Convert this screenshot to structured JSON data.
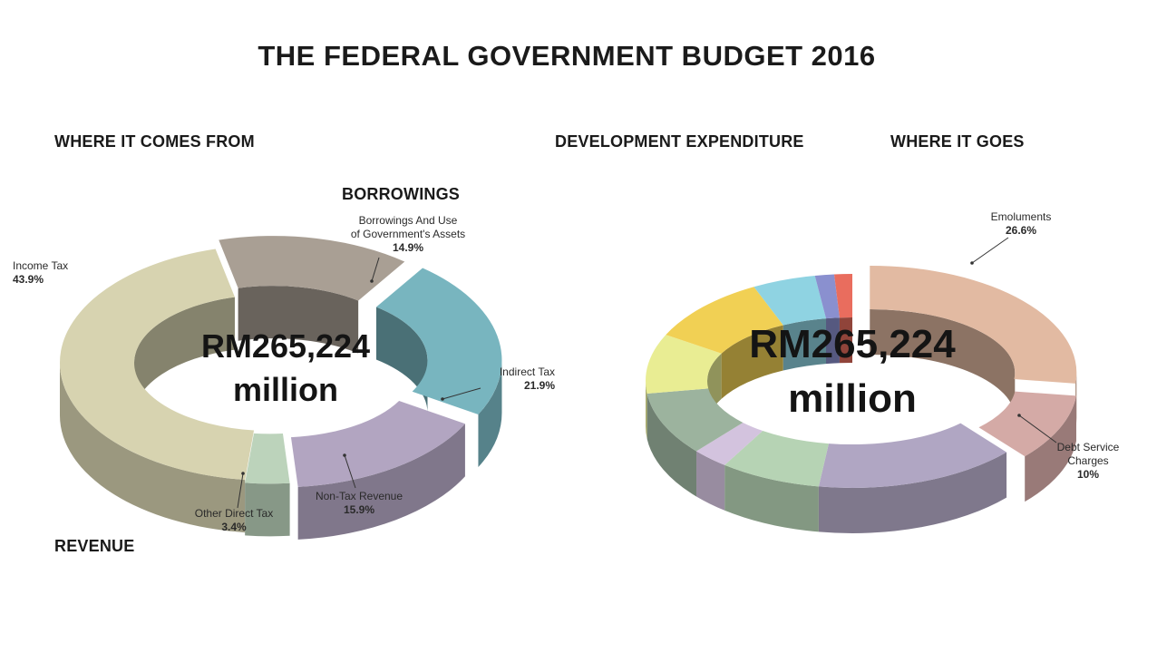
{
  "title": "THE FEDERAL GOVERNMENT BUDGET 2016",
  "chart_data": [
    {
      "type": "pie",
      "style": "3d-donut",
      "headers": {
        "top_left": "WHERE IT COMES FROM",
        "upper_right": "BORROWINGS",
        "bottom_left": "REVENUE"
      },
      "center_label": {
        "line1": "RM265,224",
        "line2": "million"
      },
      "slices": [
        {
          "label": "Income Tax",
          "label_lines": [
            "Income Tax"
          ],
          "value": 43.9,
          "value_text": "43.9%",
          "color": "#d7d3b0"
        },
        {
          "label": "Borrowings And Use of Government's Assets",
          "label_lines": [
            "Borrowings And Use",
            "of Government's Assets"
          ],
          "value": 14.9,
          "value_text": "14.9%",
          "color": "#a99f94"
        },
        {
          "label": "Indirect Tax",
          "label_lines": [
            "Indirect Tax"
          ],
          "value": 21.9,
          "value_text": "21.9%",
          "color": "#78b5bf"
        },
        {
          "label": "Non-Tax Revenue",
          "label_lines": [
            "Non-Tax Revenue"
          ],
          "value": 15.9,
          "value_text": "15.9%",
          "color": "#b2a5c1"
        },
        {
          "label": "Other Direct Tax",
          "label_lines": [
            "Other Direct Tax"
          ],
          "value": 3.4,
          "value_text": "3.4%",
          "color": "#bcd3bb"
        }
      ]
    },
    {
      "type": "pie",
      "style": "3d-donut",
      "headers": {
        "top_left": "DEVELOPMENT EXPENDITURE",
        "top_right": "WHERE IT GOES"
      },
      "center_label": {
        "line1": "RM265,224",
        "line2": "million"
      },
      "slices": [
        {
          "label": "Emoluments",
          "label_lines": [
            "Emoluments"
          ],
          "value": 26.6,
          "value_text": "26.6%",
          "color": "#e2baa2"
        },
        {
          "label": "Debt Service Charges",
          "label_lines": [
            "Debt Service",
            "Charges"
          ],
          "value": 10,
          "value_text": "10%",
          "color": "#d4aaa6"
        },
        {
          "label": "",
          "value": 16,
          "color": "#b0a6c3"
        },
        {
          "label": "",
          "value": 8,
          "color": "#b6d3b4"
        },
        {
          "label": "",
          "value": 3,
          "color": "#d3c3de"
        },
        {
          "label": "",
          "value": 9.5,
          "color": "#9cb39e"
        },
        {
          "label": "",
          "value": 9,
          "color": "#e9ed93"
        },
        {
          "label": "",
          "value": 10,
          "color": "#f1d054"
        },
        {
          "label": "",
          "value": 5,
          "color": "#8fd3e2"
        },
        {
          "label": "",
          "value": 1.5,
          "color": "#8a90cf"
        },
        {
          "label": "",
          "value": 1.4,
          "color": "#e96d5e"
        }
      ]
    }
  ]
}
